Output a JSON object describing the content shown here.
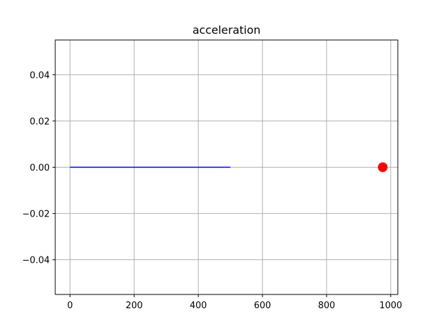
{
  "chart_data": {
    "type": "line",
    "title": "acceleration",
    "xlabel": "",
    "ylabel": "",
    "xlim": [
      -46,
      1022
    ],
    "ylim": [
      -0.055,
      0.055
    ],
    "x_ticks": [
      0,
      200,
      400,
      600,
      800,
      1000
    ],
    "x_tick_labels": [
      "0",
      "200",
      "400",
      "600",
      "800",
      "1000"
    ],
    "y_ticks": [
      0.04,
      0.02,
      0.0,
      -0.02,
      -0.04
    ],
    "y_tick_labels": [
      "0.04",
      "0.02",
      "0.00",
      "−0.02",
      "−0.04"
    ],
    "grid": true,
    "series": [
      {
        "color": "#0000cc",
        "x": [
          0,
          500
        ],
        "y": [
          0.0,
          0.0
        ]
      }
    ],
    "points": [
      {
        "color": "#ff0000",
        "x": 975,
        "y": 0.0
      }
    ]
  }
}
